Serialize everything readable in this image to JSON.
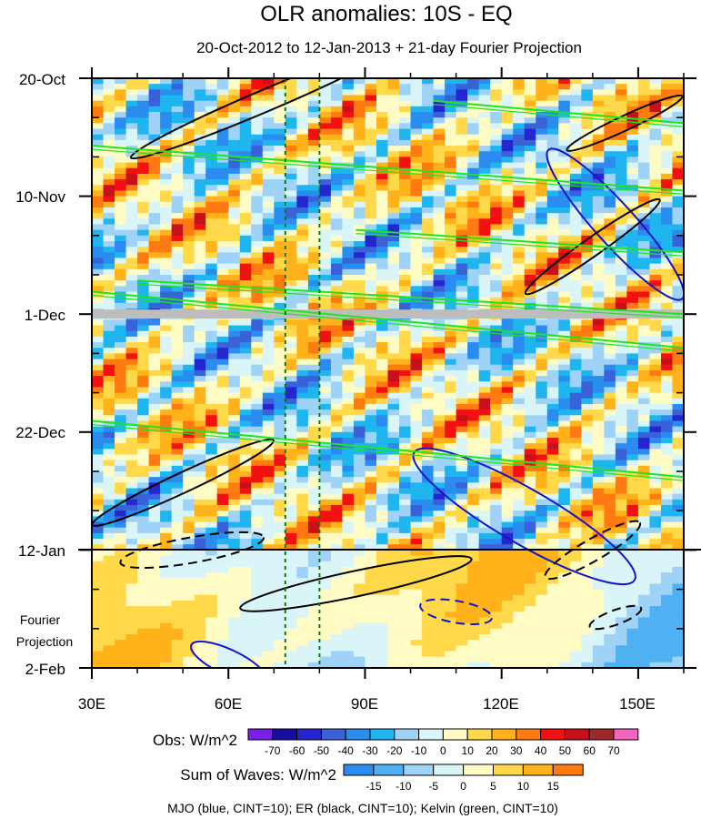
{
  "chart_data": {
    "type": "heatmap",
    "title": "OLR anomalies: 10S - EQ",
    "subtitle": "20-Oct-2012 to 12-Jan-2013 + 21-day Fourier Projection",
    "x_axis": {
      "ticks": [
        "30E",
        "60E",
        "90E",
        "120E",
        "150E"
      ],
      "values": [
        30,
        60,
        90,
        120,
        150
      ],
      "range": [
        30,
        160
      ]
    },
    "y_axis": {
      "ticks": [
        "20-Oct",
        "10-Nov",
        "1-Dec",
        "22-Dec",
        "12-Jan",
        "2-Feb"
      ],
      "days": [
        0,
        21,
        42,
        63,
        84,
        105
      ],
      "range": [
        0,
        105
      ],
      "reversed": true
    },
    "projection_label_lines": [
      "Fourier",
      "Projection"
    ],
    "observed_end_day": 84,
    "obs_colorbar": {
      "title": "Obs: W/m^2",
      "labels": [
        "-70",
        "-60",
        "-50",
        "-40",
        "-30",
        "-20",
        "-10",
        "0",
        "10",
        "20",
        "30",
        "40",
        "50",
        "60",
        "70"
      ],
      "colors": [
        "#7a1fe6",
        "#1a0ca0",
        "#2626d1",
        "#3a62d8",
        "#2b8cf0",
        "#1fb5ef",
        "#9fd2f7",
        "#d9f5f8",
        "#fffbc4",
        "#ffd94a",
        "#ffb21a",
        "#ff7a10",
        "#f21010",
        "#c8101c",
        "#9e2929",
        "#f266c0"
      ]
    },
    "waves_colorbar": {
      "title": "Sum of Waves: W/m^2",
      "labels": [
        "-15",
        "-10",
        "-5",
        "0",
        "5",
        "10",
        "15"
      ],
      "colors": [
        "#2b8cf0",
        "#4fb0f2",
        "#9fd2f7",
        "#d9f5f8",
        "#fffbc4",
        "#ffd94a",
        "#ffb21a",
        "#ff7a10"
      ]
    },
    "reference_lines_longitude": [
      72.5,
      80
    ],
    "footer": "MJO (blue, CINT=10); ER (black, CINT=10); Kelvin (green, CINT=10)"
  }
}
